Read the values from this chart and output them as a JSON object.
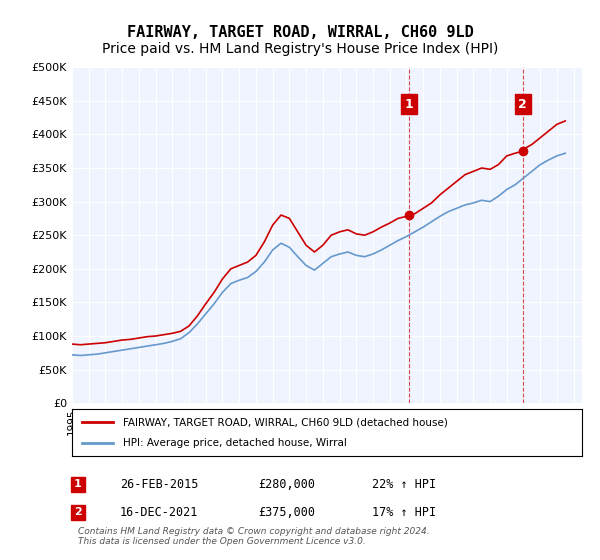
{
  "title": "FAIRWAY, TARGET ROAD, WIRRAL, CH60 9LD",
  "subtitle": "Price paid vs. HM Land Registry's House Price Index (HPI)",
  "title_fontsize": 11,
  "subtitle_fontsize": 10,
  "ylabel_ticks": [
    "£0",
    "£50K",
    "£100K",
    "£150K",
    "£200K",
    "£250K",
    "£300K",
    "£350K",
    "£400K",
    "£450K",
    "£500K"
  ],
  "ytick_values": [
    0,
    50000,
    100000,
    150000,
    200000,
    250000,
    300000,
    350000,
    400000,
    450000,
    500000
  ],
  "ylim": [
    0,
    500000
  ],
  "xlim_start": 1995.0,
  "xlim_end": 2025.5,
  "background_color": "#ffffff",
  "plot_bg_color": "#f0f4ff",
  "grid_color": "#ffffff",
  "red_line_color": "#cc0000",
  "blue_line_color": "#6699cc",
  "dashed_color": "#cc0000",
  "annotation_box_color": "#cc0000",
  "marker1_x": 2015.15,
  "marker1_y": 280000,
  "marker2_x": 2021.96,
  "marker2_y": 375000,
  "legend_label_red": "FAIRWAY, TARGET ROAD, WIRRAL, CH60 9LD (detached house)",
  "legend_label_blue": "HPI: Average price, detached house, Wirral",
  "ann1_date": "26-FEB-2015",
  "ann1_price": "£280,000",
  "ann1_hpi": "22% ↑ HPI",
  "ann2_date": "16-DEC-2021",
  "ann2_price": "£375,000",
  "ann2_hpi": "17% ↑ HPI",
  "footer": "Contains HM Land Registry data © Crown copyright and database right 2024.\nThis data is licensed under the Open Government Licence v3.0.",
  "red_data": {
    "years": [
      1995.0,
      1995.5,
      1996.0,
      1996.5,
      1997.0,
      1997.5,
      1998.0,
      1998.5,
      1999.0,
      1999.5,
      2000.0,
      2000.5,
      2001.0,
      2001.5,
      2002.0,
      2002.5,
      2003.0,
      2003.5,
      2004.0,
      2004.5,
      2005.0,
      2005.5,
      2006.0,
      2006.5,
      2007.0,
      2007.5,
      2008.0,
      2008.5,
      2009.0,
      2009.5,
      2010.0,
      2010.5,
      2011.0,
      2011.5,
      2012.0,
      2012.5,
      2013.0,
      2013.5,
      2014.0,
      2014.5,
      2015.0,
      2015.15,
      2015.5,
      2016.0,
      2016.5,
      2017.0,
      2017.5,
      2018.0,
      2018.5,
      2019.0,
      2019.5,
      2020.0,
      2020.5,
      2021.0,
      2021.5,
      2021.96,
      2022.0,
      2022.5,
      2023.0,
      2023.5,
      2024.0,
      2024.5
    ],
    "values": [
      88000,
      87000,
      88000,
      89000,
      90000,
      92000,
      94000,
      95000,
      97000,
      99000,
      100000,
      102000,
      104000,
      107000,
      115000,
      130000,
      148000,
      165000,
      185000,
      200000,
      205000,
      210000,
      220000,
      240000,
      265000,
      280000,
      275000,
      255000,
      235000,
      225000,
      235000,
      250000,
      255000,
      258000,
      252000,
      250000,
      255000,
      262000,
      268000,
      275000,
      278000,
      280000,
      282000,
      290000,
      298000,
      310000,
      320000,
      330000,
      340000,
      345000,
      350000,
      348000,
      355000,
      368000,
      372000,
      375000,
      378000,
      385000,
      395000,
      405000,
      415000,
      420000
    ]
  },
  "blue_data": {
    "years": [
      1995.0,
      1995.5,
      1996.0,
      1996.5,
      1997.0,
      1997.5,
      1998.0,
      1998.5,
      1999.0,
      1999.5,
      2000.0,
      2000.5,
      2001.0,
      2001.5,
      2002.0,
      2002.5,
      2003.0,
      2003.5,
      2004.0,
      2004.5,
      2005.0,
      2005.5,
      2006.0,
      2006.5,
      2007.0,
      2007.5,
      2008.0,
      2008.5,
      2009.0,
      2009.5,
      2010.0,
      2010.5,
      2011.0,
      2011.5,
      2012.0,
      2012.5,
      2013.0,
      2013.5,
      2014.0,
      2014.5,
      2015.0,
      2015.5,
      2016.0,
      2016.5,
      2017.0,
      2017.5,
      2018.0,
      2018.5,
      2019.0,
      2019.5,
      2020.0,
      2020.5,
      2021.0,
      2021.5,
      2022.0,
      2022.5,
      2023.0,
      2023.5,
      2024.0,
      2024.5
    ],
    "values": [
      72000,
      71000,
      72000,
      73000,
      75000,
      77000,
      79000,
      81000,
      83000,
      85000,
      87000,
      89000,
      92000,
      96000,
      105000,
      118000,
      133000,
      148000,
      165000,
      178000,
      183000,
      187000,
      196000,
      210000,
      228000,
      238000,
      232000,
      218000,
      205000,
      198000,
      208000,
      218000,
      222000,
      225000,
      220000,
      218000,
      222000,
      228000,
      235000,
      242000,
      248000,
      255000,
      262000,
      270000,
      278000,
      285000,
      290000,
      295000,
      298000,
      302000,
      300000,
      308000,
      318000,
      325000,
      335000,
      345000,
      355000,
      362000,
      368000,
      372000
    ]
  }
}
